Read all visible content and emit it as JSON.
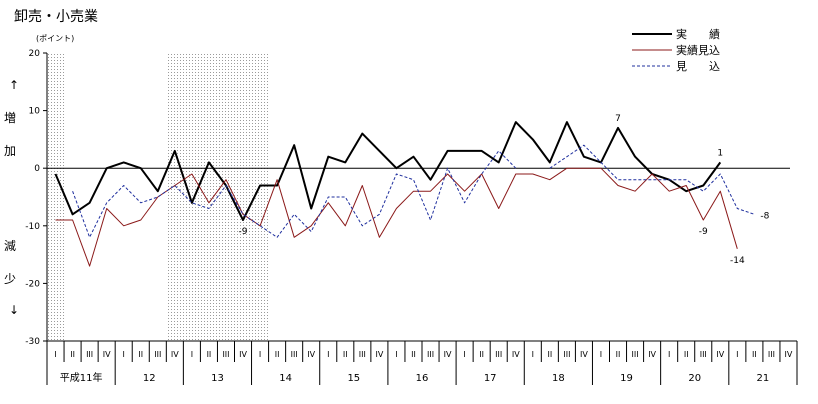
{
  "chart_data": {
    "type": "line",
    "title": "卸売・小売業",
    "unit_label": "(ポイント)",
    "ylabel_top": [
      "↑",
      "増",
      "加"
    ],
    "ylabel_bottom": [
      "減",
      "少",
      "↓"
    ],
    "ylim": [
      -30,
      20
    ],
    "yticks": [
      20,
      10,
      0,
      -10,
      -20,
      -30
    ],
    "quarter_labels": [
      "I",
      "II",
      "III",
      "IV"
    ],
    "year_labels": [
      "平成11年",
      "12",
      "13",
      "14",
      "15",
      "16",
      "17",
      "18",
      "19",
      "20",
      "21"
    ],
    "shaded_quarter_ranges": [
      [
        0,
        0
      ],
      [
        7,
        12
      ]
    ],
    "legend": {
      "position": "top-right",
      "entries": [
        {
          "label": "実　　績",
          "series": "actual"
        },
        {
          "label": "実績見込",
          "series": "estimate"
        },
        {
          "label": "見　　込",
          "series": "forecast"
        }
      ]
    },
    "series": [
      {
        "key": "actual",
        "color": "#000000",
        "style": "solid-thick",
        "values": [
          -1,
          -8,
          -6,
          0,
          1,
          0,
          -4,
          3,
          -6,
          1,
          -3,
          -9,
          -3,
          -3,
          4,
          -7,
          2,
          1,
          6,
          3,
          0,
          2,
          -2,
          3,
          3,
          3,
          1,
          8,
          5,
          1,
          8,
          2,
          1,
          7,
          2,
          -1,
          -2,
          -4,
          -3,
          1,
          null,
          null,
          null,
          null
        ]
      },
      {
        "key": "estimate",
        "color": "#8b1a1a",
        "style": "solid-thin",
        "values": [
          -9,
          -9,
          -17,
          -7,
          -10,
          -9,
          -5,
          -3,
          -1,
          -6,
          -2,
          -8,
          -10,
          -2,
          -12,
          -10,
          -6,
          -10,
          -3,
          -12,
          -7,
          -4,
          -4,
          -1,
          -4,
          -1,
          -7,
          -1,
          -1,
          -2,
          0,
          0,
          0,
          -3,
          -4,
          -1,
          -4,
          -3,
          -9,
          -4,
          -14,
          null,
          null,
          null
        ]
      },
      {
        "key": "forecast",
        "color": "#1f2f9e",
        "style": "dashed",
        "values": [
          null,
          -4,
          -12,
          -6,
          -3,
          -6,
          -5,
          -3,
          -6,
          -7,
          -3,
          -8,
          -10,
          -12,
          -8,
          -11,
          -5,
          -5,
          -10,
          -8,
          -1,
          -2,
          -9,
          0,
          -6,
          -1,
          3,
          0,
          null,
          0,
          2,
          4,
          1,
          -2,
          -2,
          -2,
          -2,
          -2,
          -4,
          -1,
          -7,
          -8,
          null,
          null
        ]
      }
    ],
    "annotations": [
      {
        "quarter_index": 11,
        "value": -9,
        "text": "-9",
        "side": "below"
      },
      {
        "quarter_index": 33,
        "value": 7,
        "text": "7",
        "side": "above"
      },
      {
        "quarter_index": 39,
        "value": 1,
        "text": "1",
        "side": "above"
      },
      {
        "quarter_index": 38,
        "value": -9,
        "text": "-9",
        "side": "below"
      },
      {
        "quarter_index": 40,
        "value": -14,
        "text": "-14",
        "side": "below"
      },
      {
        "quarter_index": 41,
        "value": -8,
        "text": "-8",
        "side": "right"
      }
    ]
  }
}
